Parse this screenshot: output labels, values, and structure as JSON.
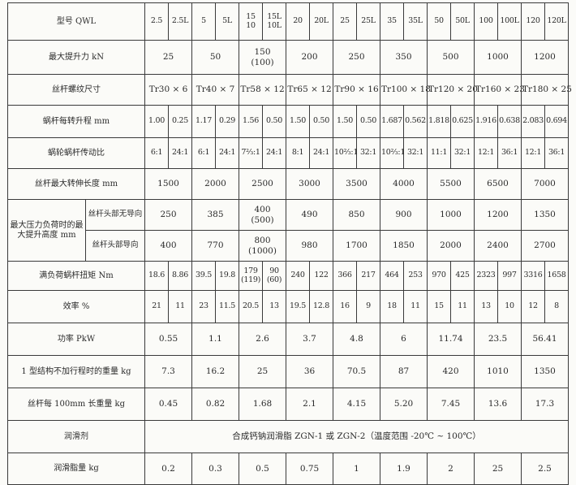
{
  "table": {
    "models": [
      "2.5",
      "2.5L",
      "5",
      "5L",
      "15\n10",
      "15L\n10L",
      "20",
      "20L",
      "25",
      "25L",
      "35",
      "35L",
      "50",
      "50L",
      "100",
      "100L",
      "120",
      "120L"
    ],
    "rows": [
      {
        "label": "最大提升力 kN",
        "group": true,
        "values": [
          "25",
          "50",
          "150\n(100)",
          "200",
          "250",
          "350",
          "500",
          "1000",
          "1200"
        ]
      },
      {
        "label": "丝杆螺纹尺寸",
        "group": true,
        "values": [
          "Tr30 × 6",
          "Tr40 × 7",
          "Tr58 × 12",
          "Tr65 × 12",
          "Tr90 × 16",
          "Tr100 × 18",
          "Tr120 × 20",
          "Tr160 × 23",
          "Tr180 × 25"
        ]
      },
      {
        "label": "蜗杆每转升程 mm",
        "group": false,
        "values": [
          "1.00",
          "0.25",
          "1.17",
          "0.29",
          "1.56",
          "0.50",
          "1.50",
          "0.50",
          "1.50",
          "0.50",
          "1.687",
          "0.562",
          "1.818",
          "0.625",
          "1.916",
          "0.638",
          "2.083",
          "0.694"
        ]
      },
      {
        "label": "蜗轮蜗杆传动比",
        "group": false,
        "values": [
          "6:1",
          "24:1",
          "6:1",
          "24:1",
          "7⅔:1",
          "24:1",
          "8:1",
          "24:1",
          "10⅔:1",
          "32:1",
          "10⅔:1",
          "32:1",
          "11:1",
          "32:1",
          "12:1",
          "36:1",
          "12:1",
          "36:1"
        ]
      },
      {
        "label": "丝杆最大转伸长度 mm",
        "group": true,
        "values": [
          "1500",
          "2000",
          "2500",
          "3000",
          "3500",
          "4000",
          "5500",
          "6500",
          "7000"
        ]
      }
    ],
    "lift_height": {
      "label": "最大压力负荷时的最大提升高度 mm",
      "subrows": [
        {
          "label": "丝杆头部无导向",
          "values": [
            "250",
            "385",
            "400\n(500)",
            "490",
            "850",
            "900",
            "1000",
            "1200",
            "1350"
          ]
        },
        {
          "label": "丝杆头部导向",
          "values": [
            "400",
            "770",
            "800\n(1000)",
            "980",
            "1700",
            "1850",
            "2000",
            "2400",
            "2700"
          ]
        }
      ]
    },
    "rows2": [
      {
        "label": "满负荷蜗杆扭矩  Nm",
        "group": false,
        "values": [
          "18.6",
          "8.86",
          "39.5",
          "19.8",
          "179\n(119)",
          "90\n(60)",
          "240",
          "122",
          "366",
          "217",
          "464",
          "253",
          "970",
          "425",
          "2323",
          "997",
          "3316",
          "1658"
        ]
      },
      {
        "label": "效率 %",
        "group": false,
        "values": [
          "21",
          "11",
          "23",
          "11.5",
          "20.5",
          "13",
          "19.5",
          "12.8",
          "16",
          "9",
          "18",
          "11",
          "15",
          "11",
          "13",
          "10",
          "12",
          "8"
        ]
      },
      {
        "label": "功率 PkW",
        "group": true,
        "values": [
          "0.55",
          "1.1",
          "2.6",
          "3.7",
          "4.8",
          "6",
          "11.74",
          "23.5",
          "56.41"
        ]
      },
      {
        "label": "1 型结构不加行程时的重量 kg",
        "group": true,
        "values": [
          "7.3",
          "16.2",
          "25",
          "36",
          "70.5",
          "87",
          "420",
          "1010",
          "1350"
        ]
      },
      {
        "label": "丝杆每 100mm 长重量 kg",
        "group": true,
        "values": [
          "0.45",
          "0.82",
          "1.68",
          "2.1",
          "4.15",
          "5.20",
          "7.45",
          "13.6",
          "17.3"
        ]
      },
      {
        "label": "润滑剂",
        "span": true,
        "values": [
          "合成钙钠润滑脂 ZGN-1 或 ZGN-2（温度范围 -20℃ ~ 100℃）"
        ]
      },
      {
        "label": "润滑脂量 kg",
        "group": true,
        "values": [
          "0.2",
          "0.3",
          "0.5",
          "0.75",
          "1",
          "1.9",
          "2",
          "25",
          "2.5"
        ]
      }
    ],
    "header_label": "型号 QWL"
  }
}
